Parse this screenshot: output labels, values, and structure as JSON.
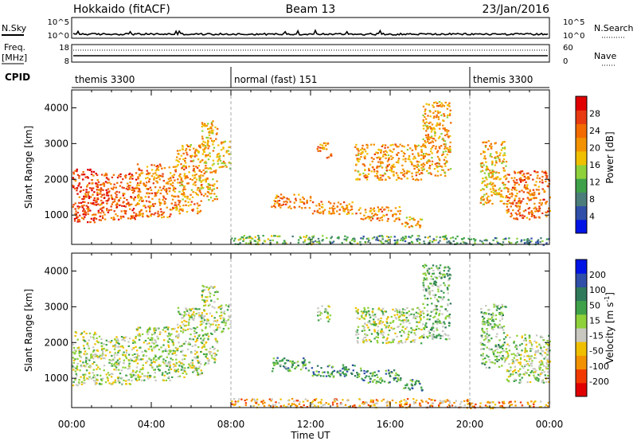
{
  "header": {
    "station": "Hokkaido (fitACF)",
    "beam": "Beam 13",
    "date": "23/Jan/2016"
  },
  "small_panels": {
    "nsky_label": "N.Sky",
    "nsearch_label": "N.Search",
    "freq_label_line1": "Freq.",
    "freq_label_line2": "[MHz]",
    "nave_label": "Nave",
    "cpid_label": "CPID",
    "noise_left_ticks": [
      "10^5",
      "10^0"
    ],
    "noise_right_ticks": [
      "10^5",
      "10^0"
    ],
    "freq_left_ticks": [
      "18",
      "8"
    ],
    "freq_right_ticks": [
      "60",
      "0"
    ]
  },
  "cpid_segments": [
    {
      "label": "themis 3300",
      "start_hour": 0,
      "end_hour": 8
    },
    {
      "label": "normal (fast) 151",
      "start_hour": 8,
      "end_hour": 20
    },
    {
      "label": "themis 3300",
      "start_hour": 20,
      "end_hour": 24
    }
  ],
  "chart_data": [
    {
      "type": "heatmap",
      "panel": "power",
      "xlabel": "Time UT",
      "ylabel": "Slant Range [km]",
      "xlim": [
        0,
        24
      ],
      "ylim": [
        180,
        4500
      ],
      "x_ticks": [
        "00:00",
        "04:00",
        "08:00",
        "12:00",
        "16:00",
        "20:00",
        "00:00"
      ],
      "y_ticks": [
        1000,
        2000,
        3000,
        4000
      ],
      "colorbar_label": "Power [dB]",
      "colorbar_ticks": [
        "28",
        "24",
        "20",
        "16",
        "12",
        "8",
        "4"
      ],
      "colorbar_range": [
        0,
        32
      ],
      "colorbar_colors": [
        "#0014e6",
        "#2f4fa8",
        "#4b7e7a",
        "#3fa24a",
        "#8fd13a",
        "#f0c000",
        "#f39200",
        "#f26a00",
        "#e83a10",
        "#e00000"
      ],
      "echo_regions": [
        {
          "t0": 0.0,
          "t1": 1.2,
          "r0": 820,
          "r1": 2350,
          "level": 0.85
        },
        {
          "t0": 1.2,
          "t1": 3.2,
          "r0": 850,
          "r1": 2200,
          "level": 0.78
        },
        {
          "t0": 3.2,
          "t1": 5.2,
          "r0": 950,
          "r1": 2450,
          "level": 0.7
        },
        {
          "t0": 5.2,
          "t1": 6.5,
          "r0": 1050,
          "r1": 3000,
          "level": 0.65
        },
        {
          "t0": 6.5,
          "t1": 7.3,
          "r0": 1400,
          "r1": 3650,
          "level": 0.62
        },
        {
          "t0": 7.3,
          "t1": 7.95,
          "r0": 2300,
          "r1": 3100,
          "level": 0.55
        },
        {
          "t0": 10.0,
          "t1": 12.0,
          "r0": 1200,
          "r1": 1600,
          "level": 0.72
        },
        {
          "t0": 12.0,
          "t1": 14.5,
          "r0": 1050,
          "r1": 1400,
          "level": 0.68
        },
        {
          "t0": 14.5,
          "t1": 16.5,
          "r0": 850,
          "r1": 1250,
          "level": 0.66
        },
        {
          "t0": 16.5,
          "t1": 17.6,
          "r0": 680,
          "r1": 980,
          "level": 0.62
        },
        {
          "t0": 12.3,
          "t1": 13.0,
          "r0": 2600,
          "r1": 3050,
          "level": 0.7
        },
        {
          "t0": 14.2,
          "t1": 17.6,
          "r0": 2000,
          "r1": 3000,
          "level": 0.66
        },
        {
          "t0": 17.6,
          "t1": 19.0,
          "r0": 2100,
          "r1": 4200,
          "level": 0.63
        },
        {
          "t0": 20.5,
          "t1": 21.8,
          "r0": 1300,
          "r1": 3100,
          "level": 0.6
        },
        {
          "t0": 21.8,
          "t1": 24.0,
          "r0": 900,
          "r1": 2250,
          "level": 0.74
        },
        {
          "t0": 8.0,
          "t1": 12.0,
          "r0": 200,
          "r1": 450,
          "level": 0.4
        },
        {
          "t0": 12.0,
          "t1": 20.0,
          "r0": 200,
          "r1": 450,
          "level": 0.35
        },
        {
          "t0": 20.0,
          "t1": 24.0,
          "r0": 180,
          "r1": 380,
          "level": 0.3
        }
      ]
    },
    {
      "type": "heatmap",
      "panel": "velocity",
      "xlabel": "Time UT",
      "ylabel": "Slant Range [km]",
      "xlim": [
        0,
        24
      ],
      "ylim": [
        180,
        4500
      ],
      "x_ticks": [
        "00:00",
        "04:00",
        "08:00",
        "12:00",
        "16:00",
        "20:00",
        "00:00"
      ],
      "y_ticks": [
        1000,
        2000,
        3000,
        4000
      ],
      "colorbar_label": "Velocity [m s^-1]",
      "colorbar_ticks": [
        "200",
        "100",
        "50",
        "15",
        "-15",
        "-50",
        "-100",
        "-200"
      ],
      "colorbar_colors": [
        "#e00000",
        "#f23a00",
        "#f39200",
        "#f0c000",
        "#c8c8c0",
        "#8fd13a",
        "#3fa24a",
        "#2f7a5a",
        "#2f4fa8",
        "#0014e6"
      ],
      "echo_regions": [
        {
          "t0": 0.0,
          "t1": 1.2,
          "r0": 820,
          "r1": 2350,
          "level": 0.5
        },
        {
          "t0": 1.2,
          "t1": 3.2,
          "r0": 850,
          "r1": 2200,
          "level": 0.5
        },
        {
          "t0": 3.2,
          "t1": 5.2,
          "r0": 950,
          "r1": 2450,
          "level": 0.5
        },
        {
          "t0": 5.2,
          "t1": 6.5,
          "r0": 1050,
          "r1": 3000,
          "level": 0.5
        },
        {
          "t0": 6.5,
          "t1": 7.3,
          "r0": 1400,
          "r1": 3650,
          "level": 0.5
        },
        {
          "t0": 7.3,
          "t1": 7.95,
          "r0": 2300,
          "r1": 3100,
          "level": 0.5
        },
        {
          "t0": 10.0,
          "t1": 12.0,
          "r0": 1200,
          "r1": 1600,
          "level": 0.65
        },
        {
          "t0": 12.0,
          "t1": 14.5,
          "r0": 1050,
          "r1": 1400,
          "level": 0.72
        },
        {
          "t0": 14.5,
          "t1": 16.5,
          "r0": 850,
          "r1": 1250,
          "level": 0.7
        },
        {
          "t0": 16.5,
          "t1": 17.6,
          "r0": 680,
          "r1": 980,
          "level": 0.72
        },
        {
          "t0": 12.3,
          "t1": 13.0,
          "r0": 2600,
          "r1": 3050,
          "level": 0.5
        },
        {
          "t0": 14.2,
          "t1": 17.6,
          "r0": 2000,
          "r1": 3000,
          "level": 0.5
        },
        {
          "t0": 17.6,
          "t1": 19.0,
          "r0": 2100,
          "r1": 4200,
          "level": 0.58
        },
        {
          "t0": 20.5,
          "t1": 21.8,
          "r0": 1300,
          "r1": 3100,
          "level": 0.6
        },
        {
          "t0": 21.8,
          "t1": 24.0,
          "r0": 900,
          "r1": 2250,
          "level": 0.5
        },
        {
          "t0": 8.0,
          "t1": 12.0,
          "r0": 200,
          "r1": 450,
          "level": 0.3
        },
        {
          "t0": 12.0,
          "t1": 20.0,
          "r0": 200,
          "r1": 450,
          "level": 0.3
        },
        {
          "t0": 20.0,
          "t1": 24.0,
          "r0": 180,
          "r1": 380,
          "level": 0.3
        }
      ]
    }
  ]
}
